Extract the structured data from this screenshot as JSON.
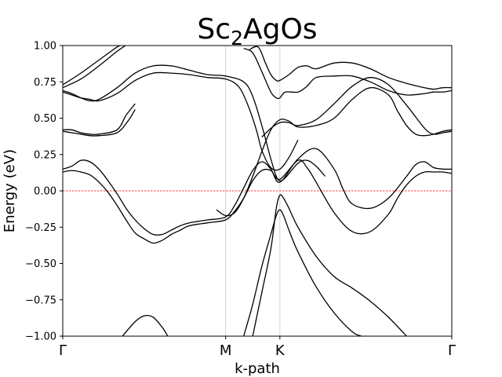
{
  "chart_data": {
    "type": "line",
    "title": "Sc",
    "title_subscript": "2",
    "title_suffix": "AgOs",
    "xlabel": "k-path",
    "ylabel": "Energy (eV)",
    "ylim": [
      -1.0,
      1.0
    ],
    "yticks": [
      -1.0,
      -0.75,
      -0.5,
      -0.25,
      0.0,
      0.25,
      0.5,
      0.75,
      1.0
    ],
    "ytick_labels": [
      "−1.00",
      "−0.75",
      "−0.50",
      "−0.25",
      "0.00",
      "0.25",
      "0.50",
      "0.75",
      "1.00"
    ],
    "xlim": [
      0,
      2.15
    ],
    "high_symmetry_points": [
      {
        "label": "Γ",
        "x": 0
      },
      {
        "label": "M",
        "x": 0.9
      },
      {
        "label": "K",
        "x": 1.2
      },
      {
        "label": "Γ",
        "x": 2.15
      }
    ],
    "fermi_level": 0.0,
    "fermi_color": "#ff0000",
    "band_color": "#000000",
    "vline_color": "#c8c8c8",
    "grid": false,
    "series": [
      {
        "x": [
          0,
          0.1,
          0.2,
          0.3,
          0.35
        ],
        "values": [
          0.73,
          0.81,
          0.9,
          0.99,
          1.02
        ]
      },
      {
        "x": [
          0,
          0.1,
          0.2,
          0.3,
          0.37
        ],
        "values": [
          0.71,
          0.77,
          0.86,
          0.96,
          1.02
        ]
      },
      {
        "x": [
          0,
          0.05,
          0.1,
          0.15,
          0.2,
          0.3,
          0.4,
          0.5,
          0.6,
          0.7,
          0.8,
          0.9,
          1.0,
          1.05,
          1.1,
          1.15,
          1.18,
          1.2,
          1.23,
          1.3,
          1.35,
          1.4,
          1.45
        ],
        "values": [
          0.69,
          0.67,
          0.64,
          0.62,
          0.63,
          0.71,
          0.81,
          0.86,
          0.86,
          0.83,
          0.8,
          0.79,
          0.75,
          0.65,
          0.45,
          0.22,
          0.1,
          0.07,
          0.09,
          0.19,
          0.21,
          0.17,
          0.1
        ]
      },
      {
        "x": [
          0,
          0.05,
          0.1,
          0.15,
          0.2,
          0.3,
          0.4,
          0.5,
          0.6,
          0.7,
          0.8,
          0.9,
          0.97,
          1.02,
          1.07,
          1.1,
          1.15,
          1.2,
          1.25,
          1.3
        ],
        "values": [
          0.68,
          0.66,
          0.64,
          0.63,
          0.62,
          0.67,
          0.76,
          0.81,
          0.81,
          0.8,
          0.78,
          0.77,
          0.72,
          0.6,
          0.42,
          0.28,
          0.16,
          0.15,
          0.23,
          0.35
        ]
      },
      {
        "x": [
          1.03,
          1.08,
          1.12,
          1.15,
          1.18,
          1.2,
          1.25,
          1.3,
          1.35,
          1.4,
          1.5,
          1.6,
          1.7,
          1.8,
          1.9,
          2.0,
          2.05,
          2.1,
          2.15
        ],
        "values": [
          0.97,
          0.99,
          0.88,
          0.8,
          0.76,
          0.76,
          0.8,
          0.85,
          0.86,
          0.84,
          0.88,
          0.88,
          0.84,
          0.78,
          0.74,
          0.71,
          0.7,
          0.71,
          0.71
        ]
      },
      {
        "x": [
          1.0,
          1.05,
          1.1,
          1.15,
          1.18,
          1.2,
          1.23,
          1.3,
          1.35,
          1.4,
          1.5,
          1.6,
          1.7,
          1.8,
          1.9,
          2.0,
          2.05,
          2.1,
          2.15
        ],
        "values": [
          0.98,
          0.95,
          0.82,
          0.68,
          0.64,
          0.64,
          0.68,
          0.68,
          0.72,
          0.78,
          0.79,
          0.79,
          0.75,
          0.69,
          0.66,
          0.67,
          0.68,
          0.68,
          0.69
        ]
      },
      {
        "x": [
          0,
          0.05,
          0.1,
          0.15,
          0.2,
          0.3,
          0.35,
          0.4
        ],
        "values": [
          0.42,
          0.42,
          0.4,
          0.39,
          0.39,
          0.42,
          0.52,
          0.6
        ]
      },
      {
        "x": [
          0,
          0.05,
          0.1,
          0.15,
          0.2,
          0.3,
          0.36,
          0.4
        ],
        "values": [
          0.41,
          0.4,
          0.39,
          0.38,
          0.38,
          0.4,
          0.48,
          0.56
        ]
      },
      {
        "x": [
          0.85,
          0.9,
          0.95,
          1.0,
          1.05,
          1.1,
          1.15,
          1.2,
          1.25,
          1.3,
          1.4,
          1.5,
          1.6,
          1.7,
          1.8,
          1.85,
          1.9,
          1.95,
          2.0,
          2.05,
          2.1,
          2.15
        ],
        "values": [
          -0.13,
          -0.17,
          -0.15,
          -0.05,
          0.1,
          0.27,
          0.42,
          0.49,
          0.48,
          0.44,
          0.45,
          0.5,
          0.63,
          0.71,
          0.66,
          0.55,
          0.45,
          0.39,
          0.38,
          0.39,
          0.41,
          0.42
        ]
      },
      {
        "x": [
          1.1,
          1.15,
          1.2,
          1.25,
          1.3,
          1.4,
          1.5,
          1.6,
          1.7,
          1.8,
          1.9,
          2.0,
          2.05,
          2.1,
          2.15
        ],
        "values": [
          0.37,
          0.43,
          0.47,
          0.47,
          0.45,
          0.49,
          0.6,
          0.72,
          0.78,
          0.73,
          0.59,
          0.43,
          0.39,
          0.4,
          0.41
        ]
      },
      {
        "x": [
          0,
          0.05,
          0.1,
          0.15,
          0.2,
          0.25,
          0.3,
          0.35,
          0.4,
          0.45,
          0.5,
          0.55,
          0.6,
          0.65,
          0.7,
          0.8,
          0.9,
          0.95,
          1.0,
          1.05,
          1.1,
          1.15,
          1.2,
          1.3,
          1.4,
          1.5,
          1.55,
          1.6,
          1.7,
          1.8,
          1.9,
          1.95,
          2.0,
          2.05,
          2.1,
          2.15
        ],
        "values": [
          0.15,
          0.17,
          0.21,
          0.2,
          0.15,
          0.07,
          -0.02,
          -0.12,
          -0.2,
          -0.26,
          -0.3,
          -0.3,
          -0.27,
          -0.24,
          -0.22,
          -0.2,
          -0.18,
          -0.1,
          0.02,
          0.14,
          0.2,
          0.15,
          0.06,
          0.22,
          0.29,
          0.15,
          0.01,
          -0.09,
          -0.12,
          -0.05,
          0.1,
          0.18,
          0.2,
          0.16,
          0.15,
          0.15
        ]
      },
      {
        "x": [
          0,
          0.05,
          0.1,
          0.15,
          0.2,
          0.25,
          0.3,
          0.35,
          0.4,
          0.45,
          0.5,
          0.55,
          0.6,
          0.65,
          0.7,
          0.8,
          0.9,
          0.95,
          1.0,
          1.05,
          1.1,
          1.15,
          1.2,
          1.3,
          1.35,
          1.4,
          1.5,
          1.6,
          1.7,
          1.8,
          1.85,
          1.9,
          1.95,
          2.0,
          2.05,
          2.1,
          2.15
        ],
        "values": [
          0.13,
          0.14,
          0.13,
          0.11,
          0.06,
          -0.01,
          -0.1,
          -0.2,
          -0.29,
          -0.33,
          -0.36,
          -0.34,
          -0.3,
          -0.27,
          -0.24,
          -0.22,
          -0.2,
          -0.14,
          -0.05,
          0.07,
          0.14,
          0.14,
          0.08,
          0.21,
          0.16,
          0.06,
          -0.15,
          -0.28,
          -0.28,
          -0.16,
          -0.05,
          0.04,
          0.1,
          0.13,
          0.13,
          0.13,
          0.12
        ]
      },
      {
        "x": [
          1.05,
          1.1,
          1.15,
          1.18,
          1.2,
          1.22,
          1.25,
          1.3,
          1.4,
          1.5,
          1.6,
          1.7,
          1.8,
          1.9
        ],
        "values": [
          -1.0,
          -0.7,
          -0.4,
          -0.12,
          -0.03,
          -0.05,
          -0.12,
          -0.25,
          -0.45,
          -0.59,
          -0.67,
          -0.76,
          -0.87,
          -1.0
        ]
      },
      {
        "x": [
          1.0,
          1.05,
          1.1,
          1.15,
          1.18,
          1.2,
          1.22,
          1.25,
          1.3,
          1.4,
          1.5,
          1.6,
          1.65
        ],
        "values": [
          -1.0,
          -0.78,
          -0.52,
          -0.3,
          -0.17,
          -0.13,
          -0.17,
          -0.27,
          -0.42,
          -0.66,
          -0.84,
          -0.97,
          -1.0
        ]
      },
      {
        "x": [
          0.33,
          0.4,
          0.45,
          0.5,
          0.55,
          0.58
        ],
        "values": [
          -1.0,
          -0.9,
          -0.86,
          -0.87,
          -0.94,
          -1.0
        ]
      }
    ]
  }
}
